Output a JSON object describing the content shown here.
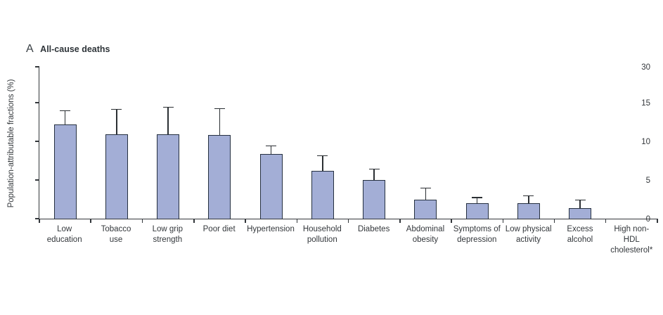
{
  "panel": {
    "letter": "A",
    "title": "All-cause deaths"
  },
  "colors": {
    "bar_fill": "#a3aed6",
    "bar_border": "#253040",
    "error_bar": "#2b2f33",
    "axis": "#33373b",
    "text": "#33373b"
  },
  "chart_data": {
    "type": "bar",
    "title": "A All-cause deaths",
    "xlabel": "",
    "ylabel": "Population-attributable fractions (%)",
    "ylim": [
      0,
      30
    ],
    "yticks": [
      0,
      5,
      10,
      15,
      30
    ],
    "ytick_labels": [
      "0",
      "5",
      "10",
      "15",
      "30"
    ],
    "axis_note": "y-axis compressed above 15: the 30 tick sits one interval above 15 with no intermediate ticks",
    "grid": false,
    "legend": null,
    "error_bars": "upper only, capped",
    "categories": [
      "Low education",
      "Tobacco use",
      "Low grip strength",
      "Poor diet",
      "Hypertension",
      "Household pollution",
      "Diabetes",
      "Abdominal obesity",
      "Symptoms of depression",
      "Low physical activity",
      "Excess alcohol",
      "High non-HDL cholesterol*"
    ],
    "categories_wrapped": [
      [
        "Low",
        "education"
      ],
      [
        "Tobacco",
        "use"
      ],
      [
        "Low grip",
        "strength"
      ],
      [
        "Poor diet"
      ],
      [
        "Hypertension"
      ],
      [
        "Household",
        "pollution"
      ],
      [
        "Diabetes"
      ],
      [
        "Abdominal",
        "obesity"
      ],
      [
        "Symptoms of",
        "depression"
      ],
      [
        "Low physical",
        "activity"
      ],
      [
        "Excess",
        "alcohol"
      ],
      [
        "High non-HDL",
        "cholesterol*"
      ]
    ],
    "values": [
      12.2,
      10.9,
      10.9,
      10.8,
      8.4,
      6.2,
      5.0,
      2.5,
      2.0,
      2.0,
      1.4,
      0
    ],
    "upper_ci": [
      14.0,
      14.2,
      14.5,
      14.3,
      9.5,
      8.2,
      6.5,
      4.0,
      2.8,
      3.0,
      2.5,
      0
    ]
  }
}
